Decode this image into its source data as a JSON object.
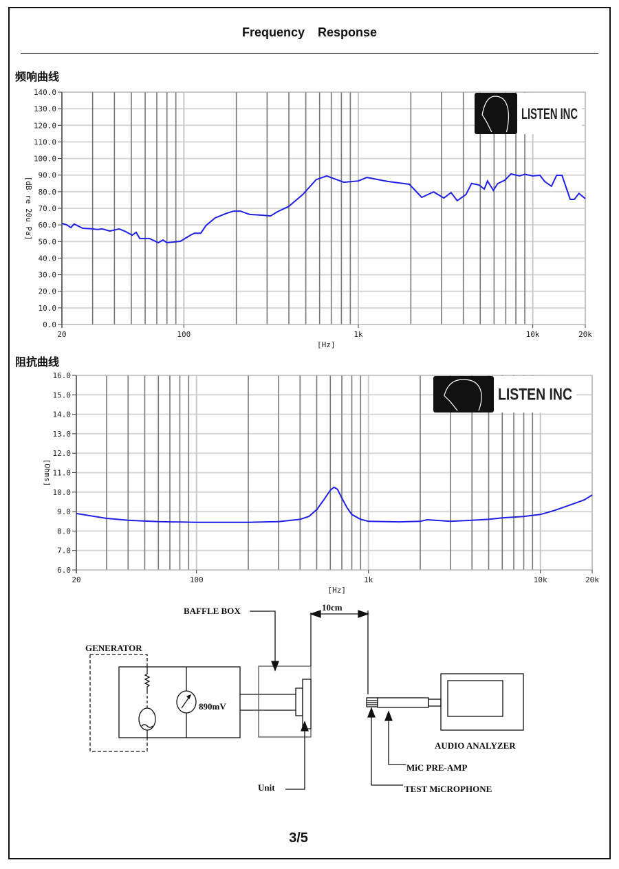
{
  "document": {
    "title": "Frequency    Response",
    "page_number": "3/5"
  },
  "chart_data": [
    {
      "type": "line",
      "section_title": "频响曲线",
      "xlabel": "[Hz]",
      "ylabel": "[dB re 20u Pa]",
      "x_scale": "log",
      "xlim": [
        20,
        20000
      ],
      "ylim": [
        0,
        140
      ],
      "x_ticks": [
        {
          "v": 20,
          "label": "20"
        },
        {
          "v": 100,
          "label": "100"
        },
        {
          "v": 1000,
          "label": "1k"
        },
        {
          "v": 10000,
          "label": "10k"
        },
        {
          "v": 20000,
          "label": "20k"
        }
      ],
      "y_ticks": [
        "0.0",
        "10.0",
        "20.0",
        "30.0",
        "40.0",
        "50.0",
        "60.0",
        "70.0",
        "80.0",
        "90.0",
        "100.0",
        "110.0",
        "120.0",
        "130.0",
        "140.0"
      ],
      "grid": true,
      "logo": "LISTEN INC",
      "line_color": "#1f1fe6",
      "points": [
        [
          20,
          60.9
        ],
        [
          21.3,
          60
        ],
        [
          22.5,
          58.4
        ],
        [
          23.5,
          60.5
        ],
        [
          26.3,
          58
        ],
        [
          30,
          57.6
        ],
        [
          32,
          57.2
        ],
        [
          34,
          57.6
        ],
        [
          37.7,
          56.3
        ],
        [
          42.6,
          57.6
        ],
        [
          46.5,
          55.9
        ],
        [
          50.6,
          53.8
        ],
        [
          53.3,
          55.5
        ],
        [
          55.9,
          51.8
        ],
        [
          63.5,
          51.8
        ],
        [
          71.4,
          49.3
        ],
        [
          75.9,
          50.9
        ],
        [
          80,
          49.3
        ],
        [
          95.6,
          50.1
        ],
        [
          109,
          53.8
        ],
        [
          115,
          55
        ],
        [
          125,
          55
        ],
        [
          134,
          59.6
        ],
        [
          151,
          64.2
        ],
        [
          176,
          67
        ],
        [
          193,
          68.3
        ],
        [
          211,
          68.3
        ],
        [
          238,
          66.3
        ],
        [
          277,
          65.9
        ],
        [
          314,
          65.4
        ],
        [
          343,
          67.9
        ],
        [
          400,
          71.2
        ],
        [
          480,
          78.3
        ],
        [
          574,
          87.3
        ],
        [
          659,
          89.5
        ],
        [
          826,
          85.7
        ],
        [
          1000,
          86.5
        ],
        [
          1120,
          88.6
        ],
        [
          1470,
          86.2
        ],
        [
          1960,
          84.5
        ],
        [
          2310,
          76.6
        ],
        [
          2700,
          79.9
        ],
        [
          3090,
          76.2
        ],
        [
          3400,
          79.5
        ],
        [
          3690,
          74.6
        ],
        [
          4140,
          78.3
        ],
        [
          4460,
          85
        ],
        [
          4930,
          84
        ],
        [
          5270,
          81.6
        ],
        [
          5500,
          86.5
        ],
        [
          5940,
          80.8
        ],
        [
          6300,
          84.9
        ],
        [
          6920,
          87
        ],
        [
          7500,
          90.7
        ],
        [
          8400,
          89.5
        ],
        [
          9000,
          90.5
        ],
        [
          10000,
          89.5
        ],
        [
          11000,
          89.9
        ],
        [
          11700,
          86.2
        ],
        [
          12800,
          83.3
        ],
        [
          13700,
          89.9
        ],
        [
          14700,
          89.9
        ],
        [
          16400,
          75.4
        ],
        [
          17300,
          75.4
        ],
        [
          18400,
          79
        ],
        [
          20000,
          75.8
        ]
      ]
    },
    {
      "type": "line",
      "section_title": "阻抗曲线",
      "xlabel": "[Hz]",
      "ylabel": "[Ohms]",
      "x_scale": "log",
      "xlim": [
        20,
        20000
      ],
      "ylim": [
        6,
        16
      ],
      "x_ticks": [
        {
          "v": 20,
          "label": "20"
        },
        {
          "v": 100,
          "label": "100"
        },
        {
          "v": 1000,
          "label": "1k"
        },
        {
          "v": 10000,
          "label": "10k"
        },
        {
          "v": 20000,
          "label": "20k"
        }
      ],
      "y_ticks": [
        "6.0",
        "7.0",
        "8.0",
        "9.0",
        "10.0",
        "11.0",
        "12.0",
        "13.0",
        "14.0",
        "15.0",
        "16.0"
      ],
      "grid": true,
      "logo": "LISTEN INC",
      "line_color": "#1f1fe6",
      "points": [
        [
          20,
          8.9
        ],
        [
          30,
          8.65
        ],
        [
          40,
          8.55
        ],
        [
          60,
          8.48
        ],
        [
          100,
          8.45
        ],
        [
          200,
          8.45
        ],
        [
          300,
          8.48
        ],
        [
          400,
          8.6
        ],
        [
          450,
          8.75
        ],
        [
          500,
          9.1
        ],
        [
          550,
          9.6
        ],
        [
          600,
          10.1
        ],
        [
          630,
          10.25
        ],
        [
          660,
          10.15
        ],
        [
          700,
          9.7
        ],
        [
          750,
          9.2
        ],
        [
          800,
          8.85
        ],
        [
          900,
          8.6
        ],
        [
          1000,
          8.5
        ],
        [
          1500,
          8.47
        ],
        [
          2000,
          8.5
        ],
        [
          2200,
          8.58
        ],
        [
          3000,
          8.5
        ],
        [
          4000,
          8.55
        ],
        [
          5000,
          8.6
        ],
        [
          6000,
          8.68
        ],
        [
          8000,
          8.75
        ],
        [
          10000,
          8.85
        ],
        [
          12000,
          9.05
        ],
        [
          15000,
          9.35
        ],
        [
          18000,
          9.6
        ],
        [
          20000,
          9.85
        ]
      ]
    }
  ],
  "diagram": {
    "baffle_box": "BAFFLE BOX",
    "distance": "10cm",
    "generator": "GENERATOR",
    "voltage": "890mV",
    "audio_analyzer": "AUDIO ANALYZER",
    "mic_preamp": "MiC PRE-AMP",
    "test_microphone": "TEST MiCROPHONE",
    "unit": "Unit"
  }
}
